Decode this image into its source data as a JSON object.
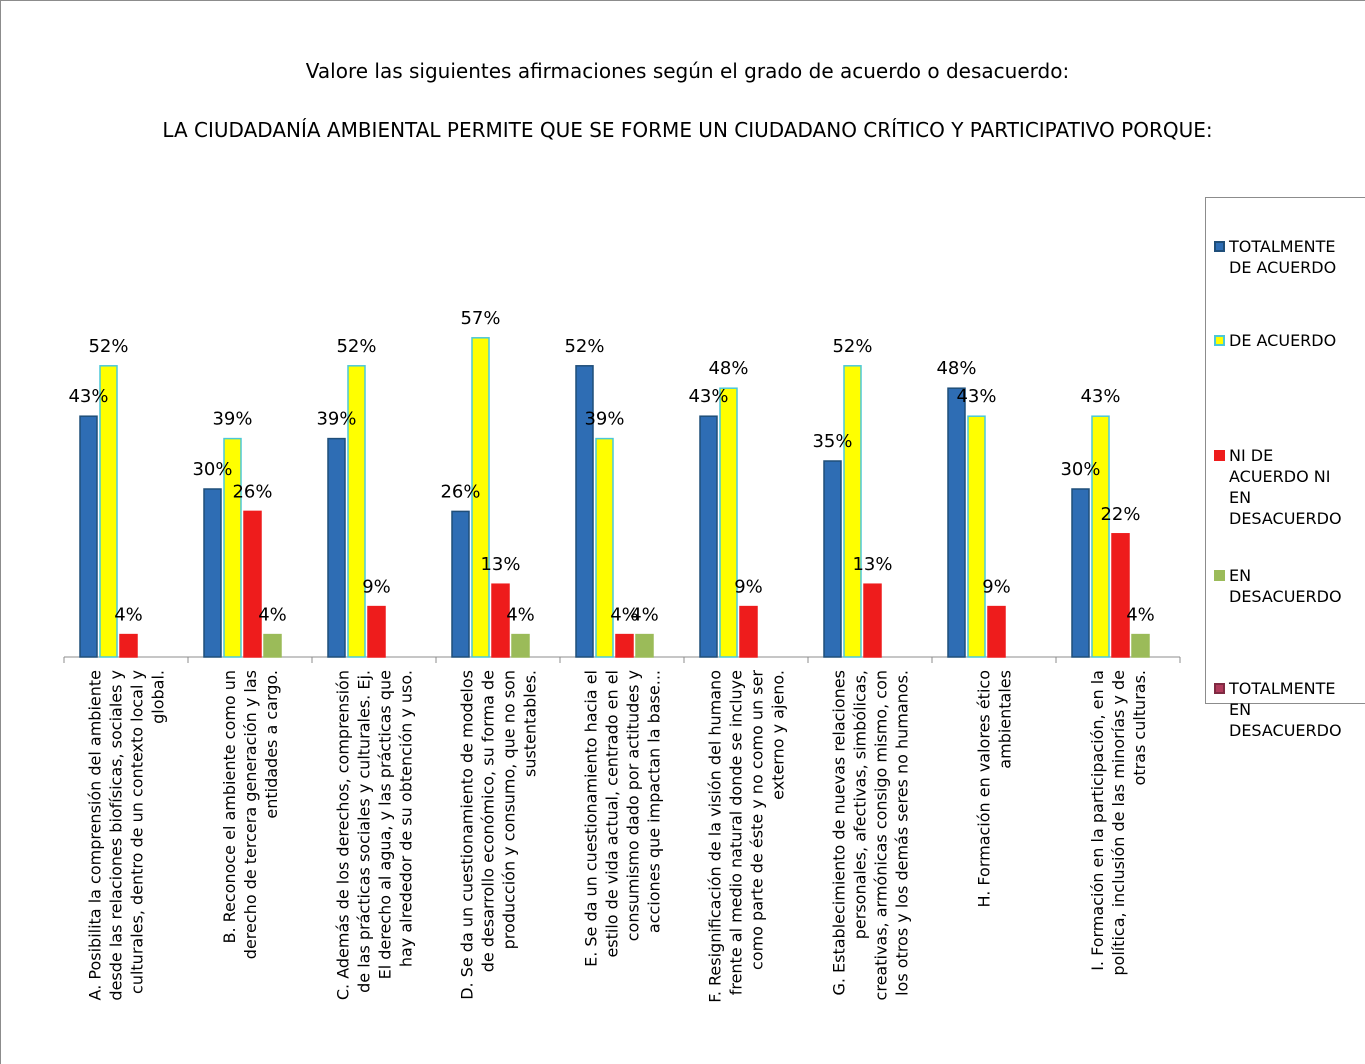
{
  "chart_data": {
    "type": "bar",
    "title": "Valore las siguientes afirmaciones según el grado de acuerdo o desacuerdo:",
    "subtitle": "LA CIUDADANÍA AMBIENTAL PERMITE QUE SE FORME UN CIUDADANO CRÍTICO Y PARTICIPATIVO PORQUE:",
    "xlabel": "",
    "ylabel": "",
    "ylim": [
      0,
      60
    ],
    "grid": false,
    "legend_position": "right",
    "categories": [
      "A. Posibilita la comprensión del ambiente desde las relaciones biofísicas, sociales y culturales, dentro de un contexto local y global.",
      "B. Reconoce el ambiente como un derecho de tercera generación y las entidades a cargo.",
      "C. Además de los derechos, comprensión de las prácticas sociales y culturales. Ej. El derecho al agua, y las prácticas que hay alrededor de su obtención y uso.",
      "D. Se da un cuestionamiento de modelos de desarrollo económico, su forma de producción y consumo, que no son sustentables.",
      "E. Se da un cuestionamiento hacia el estilo de vida actual, centrado en el consumismo dado por actitudes y acciones que impactan la base...",
      "F. Resignificación de la visión del humano frente al medio natural donde se incluye como parte de éste y no como un ser externo y ajeno.",
      "G. Establecimiento de nuevas relaciones personales, afectivas, simbólicas, creativas, armónicas consigo mismo, con los otros y los demás seres no humanos.",
      "H. Formación en valores ético ambientales",
      "I. Formación en la participación, en la política,  inclusión de las minorías y de otras culturas."
    ],
    "category_lines": [
      [
        "A. Posibilita la comprensión del ambiente",
        "desde las relaciones biofísicas, sociales y",
        "culturales, dentro de un contexto local y",
        "global."
      ],
      [
        "B. Reconoce el ambiente como un",
        "derecho de tercera generación y las",
        "entidades a cargo."
      ],
      [
        "C. Además de los derechos, comprensión",
        "de las prácticas sociales y culturales. Ej.",
        "El derecho al agua, y las prácticas que",
        "hay alrededor de su obtención y uso."
      ],
      [
        "D. Se da un cuestionamiento de modelos",
        "de desarrollo económico, su forma de",
        "producción y consumo, que no son",
        "sustentables."
      ],
      [
        "E. Se da un cuestionamiento hacia el",
        "estilo de vida actual, centrado en el",
        "consumismo dado por actitudes y",
        "acciones que impactan la base..."
      ],
      [
        "F. Resignificación de la visión del humano",
        "frente al medio natural donde se incluye",
        "como parte de éste y no como un ser",
        "externo y ajeno."
      ],
      [
        "G. Establecimiento de nuevas relaciones",
        "personales, afectivas, simbólicas,",
        "creativas, armónicas consigo mismo, con",
        "los otros y los demás seres no humanos."
      ],
      [
        "H. Formación en valores ético",
        "ambientales"
      ],
      [
        "I. Formación en la participación, en la",
        "política,  inclusión de las minorías y de",
        "otras culturas."
      ]
    ],
    "series": [
      {
        "name": "TOTALMENTE DE ACUERDO",
        "legend_lines": [
          "TOTALMENTE",
          "DE ACUERDO"
        ],
        "color": "#2E6DB4",
        "border": "#1F4E79",
        "values": [
          43,
          30,
          39,
          26,
          52,
          43,
          35,
          48,
          30
        ],
        "labels": [
          "43%",
          "30%",
          "39%",
          "26%",
          "52%",
          "43%",
          "35%",
          "48%",
          "30%"
        ]
      },
      {
        "name": "DE ACUERDO",
        "legend_lines": [
          "DE ACUERDO"
        ],
        "color": "#FFFF00",
        "border": "#4BC8D8",
        "values": [
          52,
          39,
          52,
          57,
          39,
          48,
          52,
          43,
          43
        ],
        "labels": [
          "52%",
          "39%",
          "52%",
          "57%",
          "39%",
          "48%",
          "52%",
          "43%",
          "43%"
        ]
      },
      {
        "name": "NI DE ACUERDO NI EN DESACUERDO",
        "legend_lines": [
          "NI DE",
          "ACUERDO NI",
          "EN",
          "DESACUERDO"
        ],
        "color": "#EE1C1C",
        "border": "#EE1C1C",
        "values": [
          4,
          26,
          9,
          13,
          4,
          9,
          13,
          9,
          22
        ],
        "labels": [
          "4%",
          "26%",
          "9%",
          "13%",
          "4%",
          "9%",
          "13%",
          "9%",
          "22%"
        ]
      },
      {
        "name": "EN DESACUERDO",
        "legend_lines": [
          "EN",
          "DESACUERDO"
        ],
        "color": "#9BBB59",
        "border": "#9BBB59",
        "values": [
          null,
          4,
          null,
          4,
          4,
          null,
          null,
          null,
          4
        ],
        "labels": [
          null,
          "4%",
          null,
          "4%",
          "4%",
          null,
          null,
          null,
          "4%"
        ]
      },
      {
        "name": "TOTALMENTE EN DESACUERDO",
        "legend_lines": [
          "TOTALMENTE",
          "EN",
          "DESACUERDO"
        ],
        "color": "#B03A5B",
        "border": "#7F2A42",
        "values": [
          null,
          null,
          null,
          null,
          null,
          null,
          null,
          null,
          null
        ],
        "labels": [
          null,
          null,
          null,
          null,
          null,
          null,
          null,
          null,
          null
        ]
      }
    ]
  }
}
